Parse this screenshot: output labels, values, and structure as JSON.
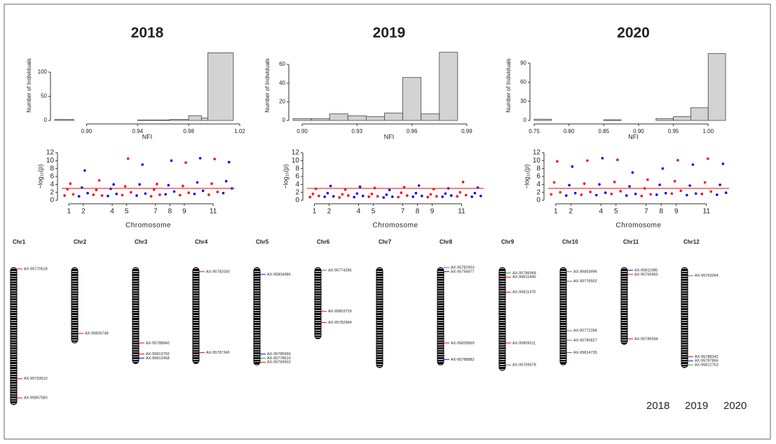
{
  "chart_data": [
    {
      "type": "histogram",
      "title": "2018",
      "x_label": "NFI",
      "y_label": "Number of Individuals",
      "bins": [
        0.875,
        0.89,
        0.9,
        0.92,
        0.94,
        0.96,
        0.965,
        0.98,
        0.99,
        0.995,
        1.015
      ],
      "counts": [
        2,
        0,
        0,
        0,
        1,
        1,
        2,
        10,
        5,
        140
      ],
      "xlim": [
        0.875,
        1.02
      ],
      "xticks": [
        {
          "value": 0.9,
          "label": "0.90"
        },
        0.94,
        0.98,
        1.02
      ],
      "ylim": [
        0,
        145
      ],
      "yticks": [
        0,
        50,
        100
      ],
      "color": "#d3d3d3"
    },
    {
      "type": "histogram",
      "title": "2019",
      "x_label": "NFI",
      "y_label": "Number of Individuals",
      "bins": [
        0.895,
        0.905,
        0.915,
        0.925,
        0.935,
        0.945,
        0.955,
        0.965,
        0.975,
        0.985,
        0.995
      ],
      "counts": [
        2,
        2,
        7,
        5,
        4,
        8,
        46,
        7,
        73,
        0
      ],
      "xlim": [
        0.895,
        1.0
      ],
      "xticks": [
        {
          "value": 0.9,
          "label": "0.90"
        },
        0.93,
        0.96,
        0.99
      ],
      "ylim": [
        0,
        75
      ],
      "yticks": [
        0,
        20,
        40,
        60
      ],
      "color": "#d3d3d3"
    },
    {
      "type": "histogram",
      "title": "2020",
      "x_label": "NFI",
      "y_label": "Number of Individuals",
      "bins": [
        0.75,
        0.775,
        0.8,
        0.825,
        0.85,
        0.875,
        0.9,
        0.925,
        0.95,
        0.975,
        1.0,
        1.025
      ],
      "counts": [
        2,
        0,
        0,
        0,
        1,
        0,
        0,
        3,
        6,
        20,
        105
      ],
      "xlim": [
        0.75,
        1.035
      ],
      "xticks": [
        0.75,
        {
          "value": 0.8,
          "label": "0.80"
        },
        0.85,
        {
          "value": 0.9,
          "label": "0.90"
        },
        0.95,
        {
          "value": 1,
          "label": "1.00"
        }
      ],
      "ylim": [
        0,
        110
      ],
      "yticks": [
        0,
        30,
        60,
        90
      ],
      "color": "#d3d3d3"
    },
    {
      "type": "scatter",
      "x_label": "Chromosome",
      "y_label": "−log₁₀(p)",
      "threshold": 3,
      "threshold_color": "#ff0000",
      "colors": [
        "#ff0000",
        "#0000ff"
      ],
      "x": [
        0.7,
        0.9,
        1.1,
        1.3,
        1.7,
        1.9,
        2.1,
        2.3,
        2.7,
        2.9,
        3.1,
        3.3,
        3.7,
        3.9,
        4.1,
        4.3,
        4.7,
        4.9,
        5.1,
        5.3,
        5.7,
        5.9,
        6.1,
        6.3,
        6.7,
        6.9,
        7.1,
        7.3,
        7.7,
        7.9,
        8.1,
        8.3,
        8.7,
        8.9,
        9.1,
        9.3,
        9.7,
        9.9,
        10.1,
        10.3,
        10.7,
        10.9,
        11.1,
        11.3,
        11.7,
        11.9,
        12.1,
        12.3
      ],
      "y": [
        1.2,
        2.8,
        4.2,
        1.5,
        1.0,
        3.2,
        7.5,
        1.8,
        1.4,
        2.6,
        5.0,
        1.2,
        1.1,
        2.9,
        4.0,
        1.6,
        1.3,
        3.5,
        10.5,
        2.0,
        1.2,
        4.0,
        9.0,
        1.7,
        1.0,
        2.7,
        4.1,
        1.4,
        1.5,
        3.8,
        10.0,
        2.2,
        1.3,
        3.6,
        9.5,
        1.9,
        1.6,
        4.5,
        10.6,
        2.4,
        1.4,
        4.2,
        10.4,
        2.1,
        1.8,
        4.8,
        9.6,
        3.0
      ],
      "xlim": [
        0.5,
        12.5
      ],
      "xticks": [
        1,
        2,
        4,
        5,
        7,
        8,
        9,
        11
      ],
      "ylim": [
        0,
        12
      ],
      "yticks": [
        0,
        2,
        4,
        6,
        8,
        10,
        12
      ]
    },
    {
      "type": "scatter",
      "x_label": "Chromosome",
      "y_label": "−log₁₀(p)",
      "threshold": 3,
      "threshold_color": "#ff0000",
      "colors": [
        "#ff0000",
        "#0000ff"
      ],
      "x": [
        0.7,
        0.9,
        1.1,
        1.3,
        1.7,
        1.9,
        2.1,
        2.3,
        2.7,
        2.9,
        3.1,
        3.3,
        3.7,
        3.9,
        4.1,
        4.3,
        4.7,
        4.9,
        5.1,
        5.3,
        5.7,
        5.9,
        6.1,
        6.3,
        6.7,
        6.9,
        7.1,
        7.3,
        7.7,
        7.9,
        8.1,
        8.3,
        8.7,
        8.9,
        9.1,
        9.3,
        9.7,
        9.9,
        10.1,
        10.3,
        10.7,
        10.9,
        11.1,
        11.3,
        11.7,
        11.9,
        12.1,
        12.3
      ],
      "y": [
        0.8,
        1.6,
        2.9,
        1.1,
        0.9,
        1.8,
        3.6,
        1.0,
        0.7,
        1.5,
        2.7,
        1.2,
        0.8,
        1.7,
        3.4,
        1.1,
        0.9,
        1.6,
        3.1,
        1.0,
        0.7,
        1.4,
        2.6,
        0.9,
        0.8,
        1.9,
        3.3,
        1.2,
        0.9,
        1.8,
        3.7,
        1.1,
        0.8,
        1.5,
        2.8,
        1.0,
        0.9,
        1.7,
        3.0,
        1.2,
        1.0,
        2.0,
        4.6,
        1.3,
        0.9,
        1.8,
        3.2,
        1.1
      ],
      "xlim": [
        0.5,
        12.5
      ],
      "xticks": [
        1,
        2,
        4,
        5,
        7,
        8,
        9,
        11
      ],
      "ylim": [
        0,
        12
      ],
      "yticks": [
        0,
        2,
        4,
        6,
        8,
        10,
        12
      ]
    },
    {
      "type": "scatter",
      "x_label": "Chromosome",
      "y_label": "−log₁₀(p)",
      "threshold": 3,
      "threshold_color": "#ff0000",
      "colors": [
        "#ff0000",
        "#0000ff"
      ],
      "x": [
        0.7,
        0.9,
        1.1,
        1.3,
        1.7,
        1.9,
        2.1,
        2.3,
        2.7,
        2.9,
        3.1,
        3.3,
        3.7,
        3.9,
        4.1,
        4.3,
        4.7,
        4.9,
        5.1,
        5.3,
        5.7,
        5.9,
        6.1,
        6.3,
        6.7,
        6.9,
        7.1,
        7.3,
        7.7,
        7.9,
        8.1,
        8.3,
        8.7,
        8.9,
        9.1,
        9.3,
        9.7,
        9.9,
        10.1,
        10.3,
        10.7,
        10.9,
        11.1,
        11.3,
        11.7,
        11.9,
        12.1,
        12.3
      ],
      "y": [
        1.5,
        4.5,
        9.8,
        2.0,
        1.2,
        3.8,
        8.5,
        1.8,
        1.4,
        4.2,
        10.0,
        2.1,
        1.3,
        4.0,
        10.6,
        1.9,
        1.6,
        4.6,
        10.2,
        2.3,
        1.2,
        3.5,
        7.0,
        1.6,
        1.1,
        3.0,
        5.2,
        1.5,
        1.4,
        3.9,
        8.0,
        1.8,
        1.7,
        4.8,
        10.1,
        2.4,
        1.3,
        3.7,
        9.0,
        1.7,
        1.6,
        4.5,
        10.5,
        2.2,
        1.4,
        3.9,
        9.2,
        1.9
      ],
      "xlim": [
        0.5,
        12.5
      ],
      "xticks": [
        1,
        2,
        4,
        5,
        7,
        8,
        9,
        11
      ],
      "ylim": [
        0,
        12
      ],
      "yticks": [
        0,
        2,
        4,
        6,
        8,
        10,
        12
      ]
    }
  ],
  "ideogram": {
    "chromosomes": [
      {
        "name": "Chr1",
        "length": 100,
        "markers": [
          {
            "label": "AX-95770518",
            "pos": 1,
            "color": "#ff0000"
          },
          {
            "label": "AX-95763510",
            "pos": 81,
            "color": "#ff0000"
          },
          {
            "label": "AX-95867583",
            "pos": 95,
            "color": "#ff0000"
          }
        ]
      },
      {
        "name": "Chr2",
        "length": 55,
        "markers": [
          {
            "label": "AX-95806748",
            "pos": 48,
            "color": "#ff0000"
          }
        ]
      },
      {
        "name": "Chr3",
        "length": 70,
        "markers": [
          {
            "label": "AX-95788840",
            "pos": 55,
            "color": "#ff0000"
          },
          {
            "label": "AX-95813750",
            "pos": 63,
            "color": "#ff0000"
          },
          {
            "label": "AX-95812458",
            "pos": 66,
            "color": "#0000ff"
          }
        ]
      },
      {
        "name": "Chr4",
        "length": 70,
        "markers": [
          {
            "label": "AX-95782030",
            "pos": 3,
            "color": "#ff0000"
          },
          {
            "label": "AX-95787340",
            "pos": 62,
            "color": "#ff0000"
          }
        ]
      },
      {
        "name": "Chr5",
        "length": 71,
        "markers": [
          {
            "label": "AX-95804986",
            "pos": 5,
            "color": "#0000ff"
          },
          {
            "label": "AX-95785566",
            "pos": 63,
            "color": "#0000ff"
          },
          {
            "label": "AX-95778610",
            "pos": 66,
            "color": "#22a022"
          },
          {
            "label": "AX-95769933",
            "pos": 69,
            "color": "#ff0000"
          }
        ]
      },
      {
        "name": "Chr6",
        "length": 52,
        "markers": [
          {
            "label": "AX-95774286",
            "pos": 2,
            "color": "#22a022"
          },
          {
            "label": "AX-95803729",
            "pos": 32,
            "color": "#ff0000"
          },
          {
            "label": "AX-95782984",
            "pos": 40,
            "color": "#ff0000"
          }
        ]
      },
      {
        "name": "Chr7",
        "length": 73,
        "markers": []
      },
      {
        "name": "Chr8",
        "length": 71,
        "markers": [
          {
            "label": "AX-95782953",
            "pos": 0,
            "color": "#22a022"
          },
          {
            "label": "AX-95794977",
            "pos": 3,
            "color": "#0000ff"
          },
          {
            "label": "AX-95839869",
            "pos": 55,
            "color": "#ff0000"
          },
          {
            "label": "AX-95788882",
            "pos": 67,
            "color": "#0000ff"
          }
        ]
      },
      {
        "name": "Chr9",
        "length": 75,
        "markers": [
          {
            "label": "AX-95786968",
            "pos": 4,
            "color": "#22a022"
          },
          {
            "label": "AX-95811443",
            "pos": 7,
            "color": "#ff0000"
          },
          {
            "label": "AX-95811470",
            "pos": 18,
            "color": "#ff0000"
          },
          {
            "label": "AX-95809511",
            "pos": 55,
            "color": "#ff0000"
          },
          {
            "label": "AX-95769578",
            "pos": 71,
            "color": "#22a022"
          }
        ]
      },
      {
        "name": "Chr10",
        "length": 71,
        "markers": [
          {
            "label": "AX-95803996",
            "pos": 3,
            "color": "#22a022"
          },
          {
            "label": "AX-95776552",
            "pos": 10,
            "color": "#22a022"
          },
          {
            "label": "AX-95772288",
            "pos": 46,
            "color": "#22a022"
          },
          {
            "label": "AX-95780827",
            "pos": 53,
            "color": "#22a022"
          },
          {
            "label": "AX-95814735",
            "pos": 62,
            "color": "#22a022"
          }
        ]
      },
      {
        "name": "Chr11",
        "length": 56,
        "markers": [
          {
            "label": "AX-95811985",
            "pos": 2,
            "color": "#0000ff"
          },
          {
            "label": "AX-95765960",
            "pos": 5,
            "color": "#ff0000"
          },
          {
            "label": "AX-95786584",
            "pos": 52,
            "color": "#ff0000"
          }
        ]
      },
      {
        "name": "Chr12",
        "length": 73,
        "markers": [
          {
            "label": "AX-95763264",
            "pos": 6,
            "color": "#22a022"
          },
          {
            "label": "AX-95788342",
            "pos": 65,
            "color": "#ff0000"
          },
          {
            "label": "AX-95787866",
            "pos": 68,
            "color": "#0000ff"
          },
          {
            "label": "AX-95812763",
            "pos": 71,
            "color": "#22a022"
          }
        ]
      }
    ],
    "legend": [
      {
        "label": "2018",
        "color": "#22a022"
      },
      {
        "label": "2019",
        "color": "#0000ff"
      },
      {
        "label": "2020",
        "color": "#ff0000"
      }
    ]
  }
}
